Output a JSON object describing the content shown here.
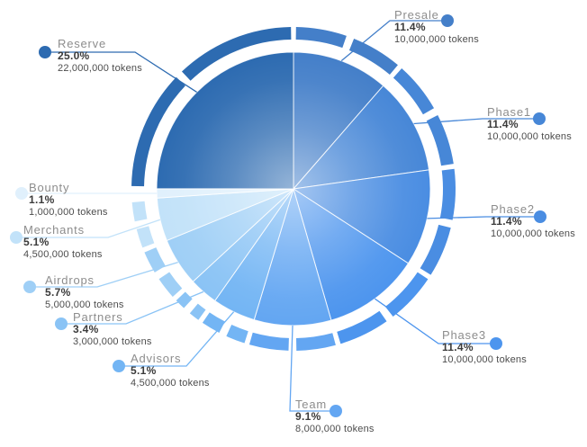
{
  "chart_data": {
    "type": "pie",
    "title": "",
    "direction": "clockwise",
    "start_angle_deg": 0,
    "legend_position": "callout-labels-around-chart",
    "segments": [
      {
        "label": "Presale",
        "percent": "11.4%",
        "tokens": "10,000,000 tokens",
        "value": 11.4,
        "color": "#447fc9"
      },
      {
        "label": "Phase1",
        "percent": "11.4%",
        "tokens": "10,000,000 tokens",
        "value": 11.4,
        "color": "#4787d7"
      },
      {
        "label": "Phase2",
        "percent": "11.4%",
        "tokens": "10,000,000 tokens",
        "value": 11.4,
        "color": "#4a8de2"
      },
      {
        "label": "Phase3",
        "percent": "11.4%",
        "tokens": "10,000,000 tokens",
        "value": 11.4,
        "color": "#4d95ee"
      },
      {
        "label": "Team",
        "percent": "9.1%",
        "tokens": "8,000,000 tokens",
        "value": 9.1,
        "color": "#63a6f2"
      },
      {
        "label": "Advisors",
        "percent": "5.1%",
        "tokens": "4,500,000 tokens",
        "value": 5.1,
        "color": "#73b5f4"
      },
      {
        "label": "Partners",
        "percent": "3.4%",
        "tokens": "3,000,000 tokens",
        "value": 3.4,
        "color": "#8ac3f5"
      },
      {
        "label": "Airdrops",
        "percent": "5.7%",
        "tokens": "5,000,000 tokens",
        "value": 5.7,
        "color": "#9fcff6"
      },
      {
        "label": "Merchants",
        "percent": "5.1%",
        "tokens": "4,500,000 tokens",
        "value": 5.1,
        "color": "#c2e2f9"
      },
      {
        "label": "Bounty",
        "percent": "1.1%",
        "tokens": "1,000,000 tokens",
        "value": 1.1,
        "color": "#e0f0fc"
      },
      {
        "label": "Reserve",
        "percent": "25.0%",
        "tokens": "22,000,000 tokens",
        "value": 25.0,
        "color": "#2d6bb1"
      }
    ]
  }
}
